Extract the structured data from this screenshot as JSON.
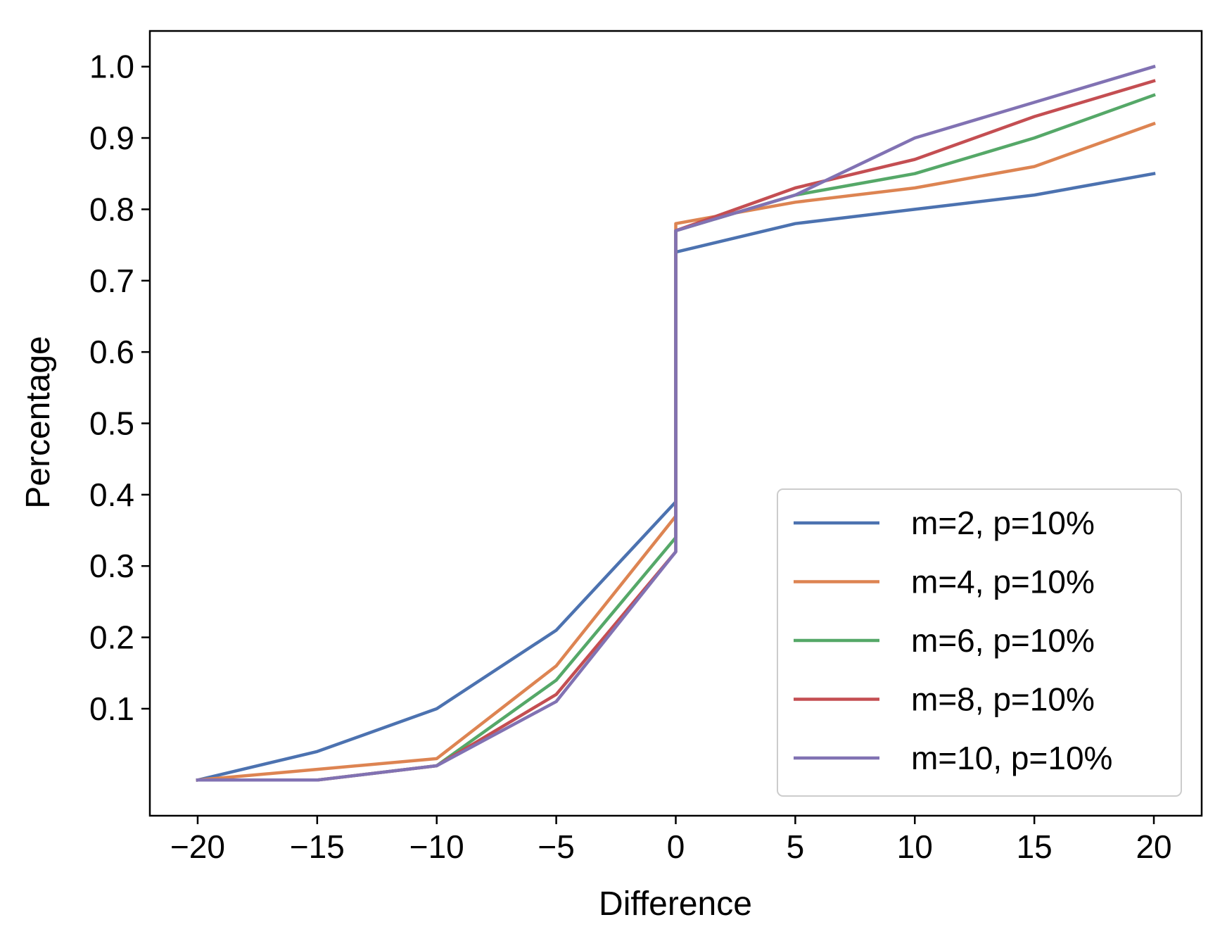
{
  "chart_data": {
    "type": "line",
    "title": "",
    "xlabel": "Difference",
    "ylabel": "Percentage",
    "xlim": [
      -22,
      22
    ],
    "ylim": [
      -0.05,
      1.05
    ],
    "x": [
      -20,
      -15,
      -10,
      -5,
      0,
      0,
      5,
      10,
      15,
      20
    ],
    "x_ticks": [
      -20,
      -15,
      -10,
      -5,
      0,
      5,
      10,
      15,
      20
    ],
    "x_tick_labels": [
      "−20",
      "−15",
      "−10",
      "−5",
      "0",
      "5",
      "10",
      "15",
      "20"
    ],
    "y_ticks": [
      0.1,
      0.2,
      0.3,
      0.4,
      0.5,
      0.6,
      0.7,
      0.8,
      0.9,
      1.0
    ],
    "y_tick_labels": [
      "0.1",
      "0.2",
      "0.3",
      "0.4",
      "0.5",
      "0.6",
      "0.7",
      "0.8",
      "0.9",
      "1.0"
    ],
    "grid": false,
    "legend_position": "bottom-right",
    "series": [
      {
        "name": "m=2, p=10%",
        "color": "#4c72b0",
        "values": [
          0.0,
          0.04,
          0.1,
          0.21,
          0.39,
          0.74,
          0.78,
          0.8,
          0.82,
          0.85
        ]
      },
      {
        "name": "m=4, p=10%",
        "color": "#dd8452",
        "values": [
          0.0,
          0.015,
          0.03,
          0.16,
          0.37,
          0.78,
          0.81,
          0.83,
          0.86,
          0.92
        ]
      },
      {
        "name": "m=6, p=10%",
        "color": "#55a868",
        "values": [
          0.0,
          0.0,
          0.02,
          0.14,
          0.34,
          0.77,
          0.82,
          0.85,
          0.9,
          0.96
        ]
      },
      {
        "name": "m=8, p=10%",
        "color": "#c44e52",
        "values": [
          0.0,
          0.0,
          0.02,
          0.12,
          0.32,
          0.77,
          0.83,
          0.87,
          0.93,
          0.98
        ]
      },
      {
        "name": "m=10, p=10%",
        "color": "#8172b3",
        "values": [
          0.0,
          0.0,
          0.02,
          0.11,
          0.32,
          0.77,
          0.82,
          0.9,
          0.95,
          1.0
        ]
      }
    ]
  }
}
